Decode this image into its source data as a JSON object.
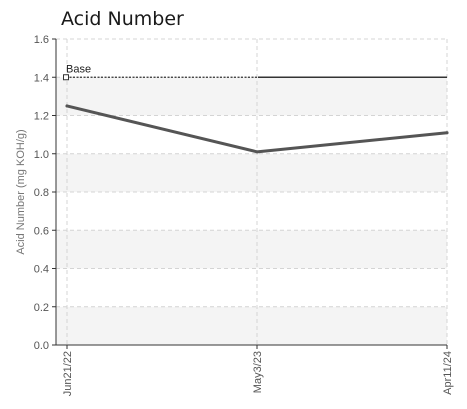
{
  "chart_data": {
    "type": "line",
    "title": "Acid Number",
    "ylabel": "Acid Number (mg KOH/g)",
    "xlabel": "",
    "categories": [
      "Jun21/22",
      "May3/23",
      "Apr11/24"
    ],
    "ylim": [
      0,
      1.6
    ],
    "yticks": [
      "0.0",
      "0.2",
      "0.4",
      "0.6",
      "0.8",
      "1.0",
      "1.2",
      "1.4",
      "1.6"
    ],
    "grid": true,
    "series": [
      {
        "values": [
          1.25,
          1.01,
          1.11
        ],
        "color": "#555555"
      }
    ],
    "baseline": {
      "label": "Base",
      "value": 1.4,
      "color": "#333333"
    },
    "band_colors": [
      "#f4f4f4",
      "#ffffff"
    ],
    "grid_color": "#d4d4d4"
  }
}
